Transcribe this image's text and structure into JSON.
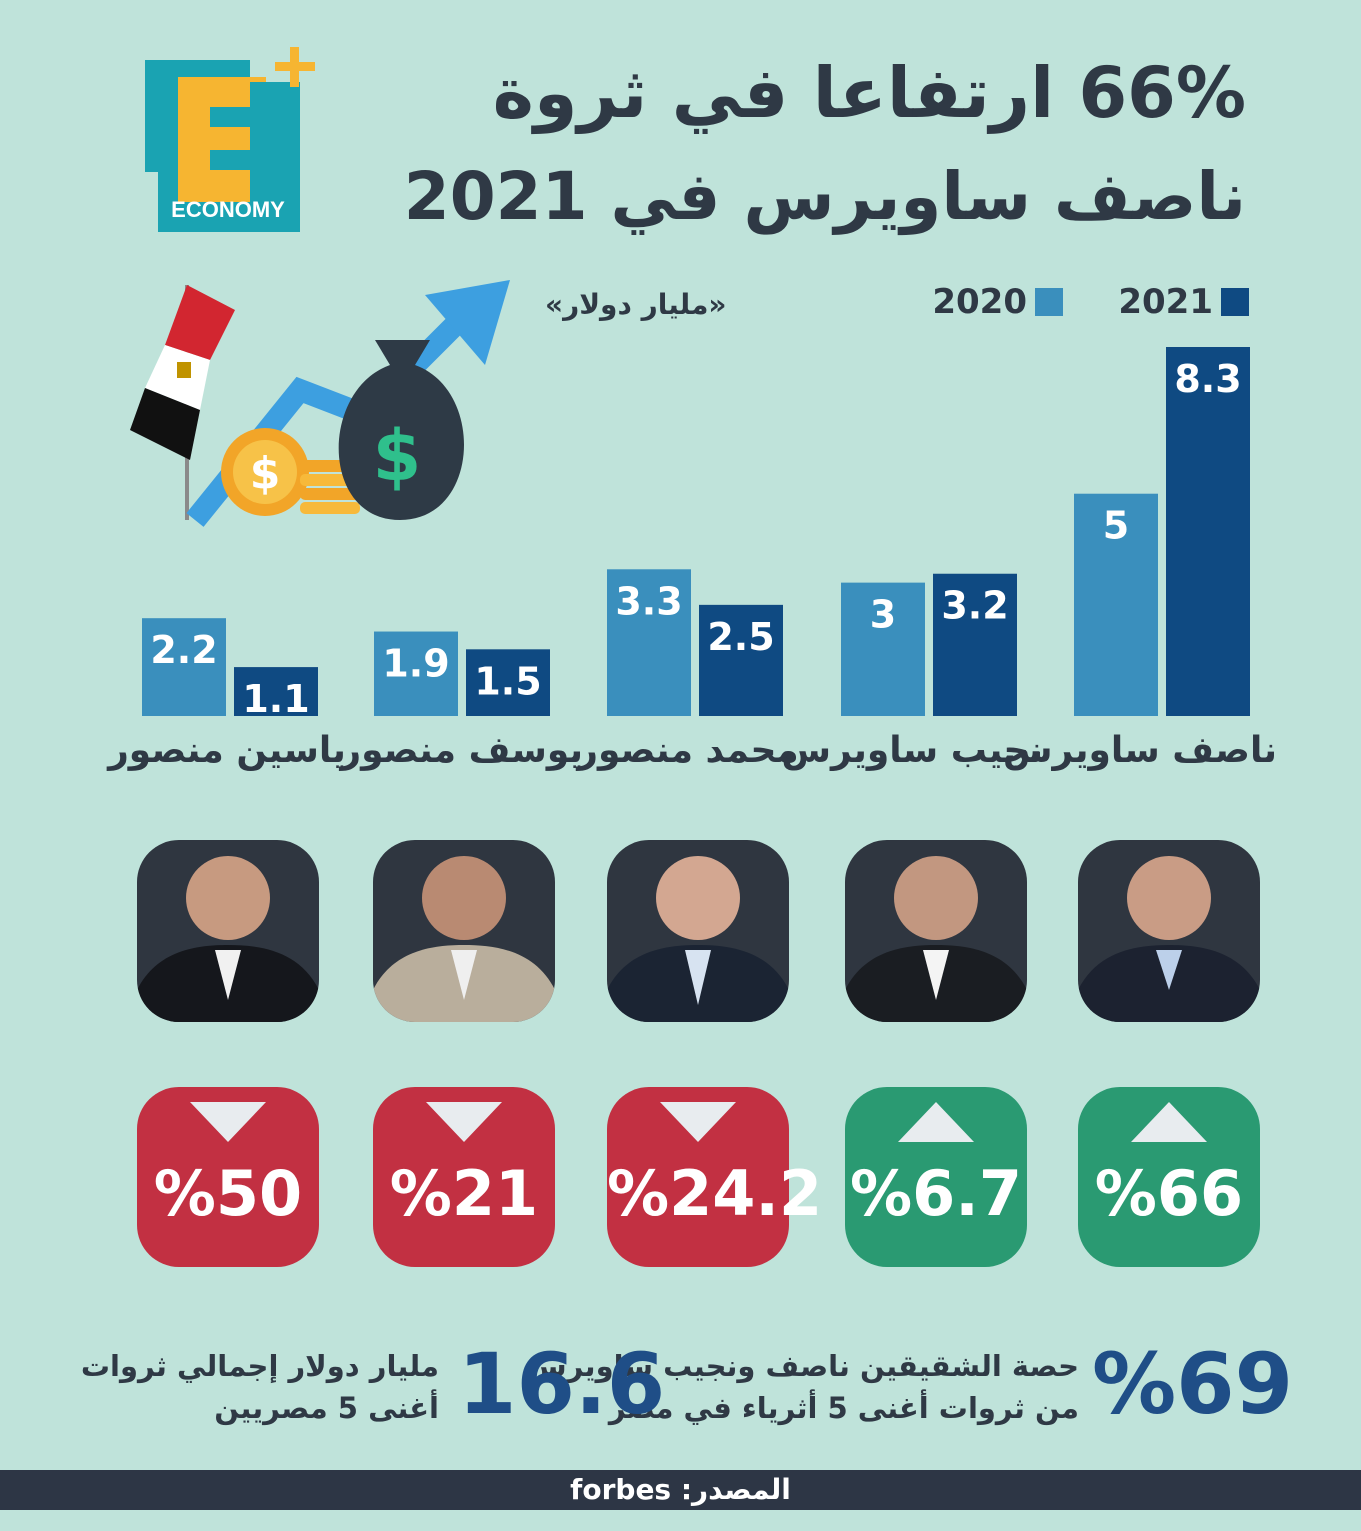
{
  "logo": {
    "letter": "E",
    "plus": "+",
    "text": "ECONOMY"
  },
  "title": {
    "line1": "66% ارتفاعا في ثروة",
    "line2": "ناصف ساويرس في 2021"
  },
  "legend": [
    {
      "label": "2021",
      "color": "#0f4a82"
    },
    {
      "label": "2020",
      "color": "#3a8fbd"
    }
  ],
  "unit": "«مليار دولار»",
  "chart_data": {
    "type": "bar",
    "categories": [
      "ناصف ساويرس",
      "نجيب ساويرس",
      "محمد منصور",
      "يوسف منصور",
      "ياسين منصور"
    ],
    "series": [
      {
        "name": "2021",
        "values": [
          8.3,
          3.2,
          2.5,
          1.5,
          1.1
        ]
      },
      {
        "name": "2020",
        "values": [
          5,
          3,
          3.3,
          1.9,
          2.2
        ]
      }
    ],
    "value_labels": {
      "2021": [
        "8.3",
        "3.2",
        "2.5",
        "1.5",
        "1.1"
      ],
      "2020": [
        "5",
        "3",
        "3.3",
        "1.9",
        "2.2"
      ]
    },
    "colors": {
      "2021": "#0f4a82",
      "2020": "#3a8fbd"
    },
    "ylim": [
      0,
      8.3
    ],
    "grid": false,
    "legend_position": "top-right"
  },
  "changes": [
    {
      "value": "%66",
      "direction": "up",
      "color": "#2a9a72"
    },
    {
      "value": "%6.7",
      "direction": "up",
      "color": "#2a9a72"
    },
    {
      "value": "%24.2",
      "direction": "down",
      "color": "#c23042"
    },
    {
      "value": "%21",
      "direction": "down",
      "color": "#c23042"
    },
    {
      "value": "%50",
      "direction": "down",
      "color": "#c23042"
    }
  ],
  "stats": {
    "share_value": "%69",
    "share_line1": "حصة الشقيقين ناصف ونجيب ساويرس",
    "share_line2": "من ثروات أغنى 5 أثرياء في مصر",
    "total_value": "16.6",
    "total_line1": "مليار دولار إجمالي ثروات",
    "total_line2": "أغنى 5 مصريين"
  },
  "footer": {
    "source": "المصدر: forbes"
  }
}
